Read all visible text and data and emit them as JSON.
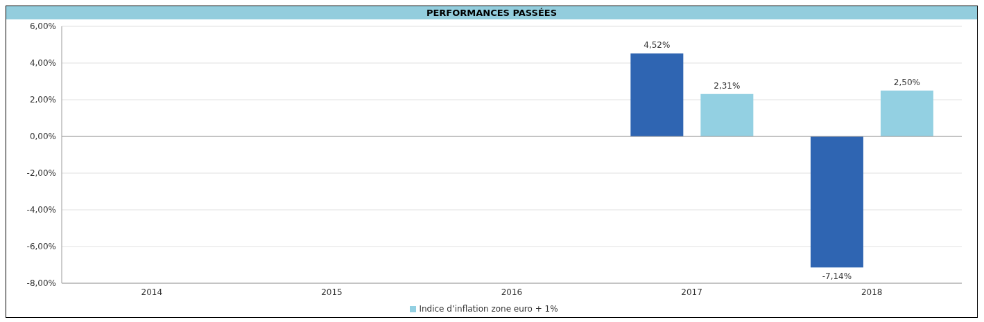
{
  "chart_data": {
    "type": "bar",
    "title": "PERFORMANCES PASSÉES",
    "categories": [
      "2014",
      "2015",
      "2016",
      "2017",
      "2018"
    ],
    "series": [
      {
        "color": "#2f65b2",
        "values": [
          null,
          null,
          null,
          4.52,
          -7.14
        ],
        "value_labels": [
          null,
          null,
          null,
          "4,52%",
          "-7,14%"
        ]
      },
      {
        "name": "Indice d’inflation zone euro + 1%",
        "color": "#93d0e2",
        "values": [
          null,
          null,
          null,
          2.31,
          2.5
        ],
        "value_labels": [
          null,
          null,
          null,
          "2,31%",
          "2,50%"
        ]
      }
    ],
    "ylim": [
      -8,
      6
    ],
    "yticks": [
      {
        "value": 6,
        "label": "6,00%"
      },
      {
        "value": 4,
        "label": "4,00%"
      },
      {
        "value": 2,
        "label": "2,00%"
      },
      {
        "value": 0,
        "label": "0,00%"
      },
      {
        "value": -2,
        "label": "-2,00%"
      },
      {
        "value": -4,
        "label": "-4,00%"
      },
      {
        "value": -6,
        "label": "-6,00%"
      },
      {
        "value": -8,
        "label": "-8,00%"
      }
    ],
    "grid": "y",
    "legend": "bottom"
  }
}
